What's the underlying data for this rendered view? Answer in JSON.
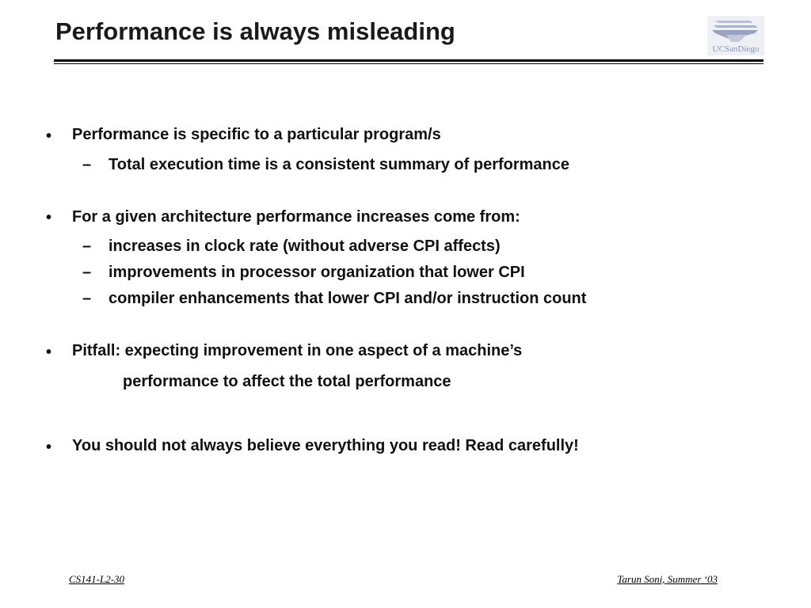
{
  "slide": {
    "title": "Performance is always misleading",
    "logo_text": "UCSanDiego"
  },
  "bullets": [
    {
      "text": "Performance is specific to a particular program/s",
      "subs": [
        "Total execution time is a consistent summary of performance"
      ]
    },
    {
      "text": "For a given architecture performance increases come from:",
      "subs": [
        "increases in clock rate (without adverse CPI affects)",
        "improvements in processor organization that lower CPI",
        "compiler enhancements that lower CPI and/or instruction count"
      ]
    },
    {
      "text": "Pitfall:  expecting improvement in one aspect of a machine’s",
      "continuation": "performance to affect the total performance"
    },
    {
      "text": "You should not always believe everything you read!  Read carefully!"
    }
  ],
  "markers": {
    "bullet": "•",
    "dash": "–"
  },
  "footer": {
    "left": "CS141-L2-30",
    "right": "Tarun Soni, Summer ‘03"
  }
}
